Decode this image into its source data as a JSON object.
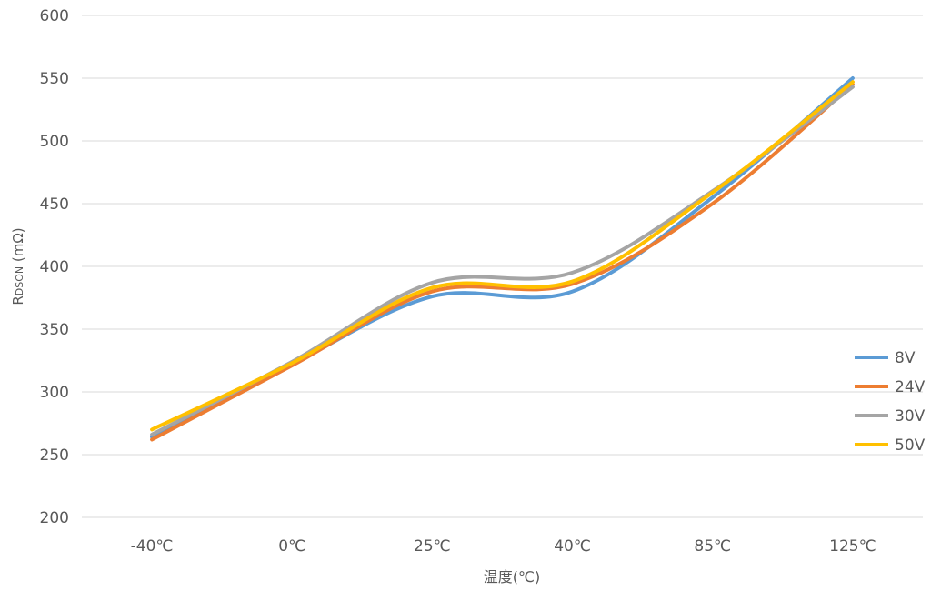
{
  "chart_data": {
    "type": "line",
    "title": "",
    "xlabel": "温度(℃)",
    "ylabel_main": "R",
    "ylabel_sub": "DSON",
    "ylabel_unit": " (mΩ)",
    "categories": [
      "-40℃",
      "0℃",
      "25℃",
      "40℃",
      "85℃",
      "125℃"
    ],
    "ylim": [
      200,
      600
    ],
    "yticks": [
      "200",
      "250",
      "300",
      "350",
      "400",
      "450",
      "500",
      "550",
      "600"
    ],
    "grid": true,
    "legend_position": "right",
    "series": [
      {
        "name": "8V",
        "color": "#5b9bd5",
        "values": [
          264,
          322,
          376,
          380,
          455,
          550
        ]
      },
      {
        "name": "24V",
        "color": "#ed7d31",
        "values": [
          262,
          321,
          380,
          386,
          450,
          545
        ]
      },
      {
        "name": "30V",
        "color": "#a5a5a5",
        "values": [
          266,
          324,
          387,
          395,
          460,
          543
        ]
      },
      {
        "name": "50V",
        "color": "#ffc000",
        "values": [
          270,
          323,
          383,
          388,
          459,
          547
        ]
      }
    ]
  }
}
